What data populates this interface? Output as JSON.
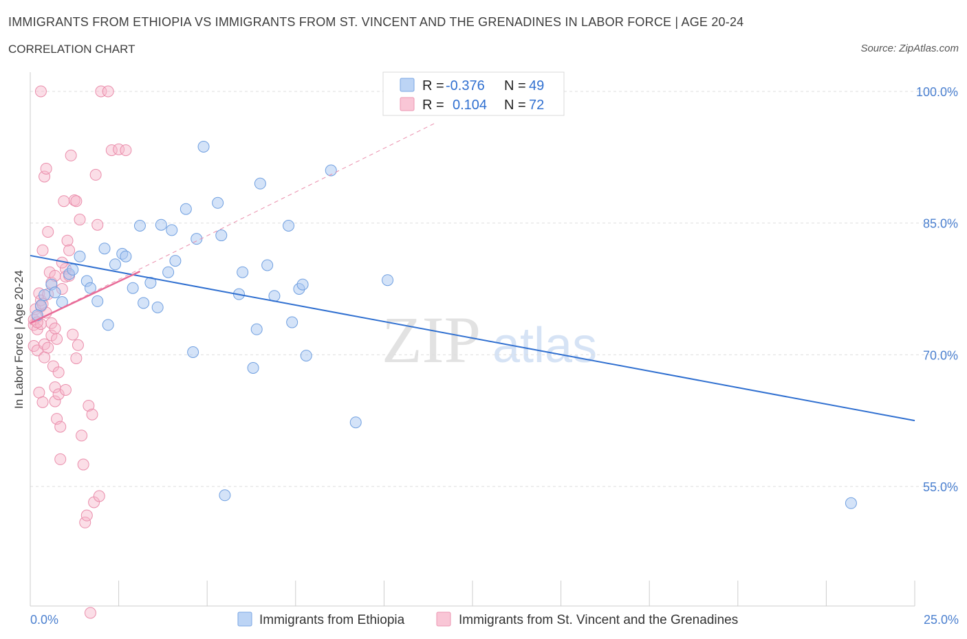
{
  "header": {
    "title": "IMMIGRANTS FROM ETHIOPIA VS IMMIGRANTS FROM ST. VINCENT AND THE GRENADINES IN LABOR FORCE | AGE 20-24",
    "subtitle": "CORRELATION CHART",
    "source": "Source: ZipAtlas.com"
  },
  "colors": {
    "blue_fill": "#a9c8f2",
    "blue_stroke": "#6f9fe0",
    "blue_line": "#2f6fd0",
    "pink_fill": "#f6b6ca",
    "pink_stroke": "#ea8dab",
    "pink_line": "#e86b98",
    "grid": "#dddddd",
    "axis_text": "#4a7fcf"
  },
  "legend": {
    "r_label": "R =",
    "n_label": "N =",
    "series": [
      {
        "r": "-0.376",
        "n": "49"
      },
      {
        "r": "0.104",
        "n": "72"
      }
    ]
  },
  "watermark": {
    "zip": "ZIP",
    "atlas": "atlas"
  },
  "chart_data": {
    "type": "scatter",
    "title": "IMMIGRANTS FROM ETHIOPIA VS IMMIGRANTS FROM ST. VINCENT AND THE GRENADINES IN LABOR FORCE | AGE 20-24",
    "xlabel": "",
    "ylabel": "In Labor Force | Age 20-24",
    "xlim": [
      0,
      25
    ],
    "ylim": [
      40,
      100
    ],
    "x_tick_labels": [
      "0.0%",
      "25.0%"
    ],
    "y_ticks": [
      100,
      85,
      70,
      55
    ],
    "y_tick_labels": [
      "100.0%",
      "85.0%",
      "70.0%",
      "55.0%"
    ],
    "series": [
      {
        "name": "Immigrants from Ethiopia",
        "color": "blue",
        "r": -0.376,
        "n": 49,
        "trend": {
          "x0": 0,
          "y0": 81.3,
          "x1": 25,
          "y1": 62.5
        },
        "points": [
          [
            0.3,
            75.6
          ],
          [
            0.4,
            76.8
          ],
          [
            0.6,
            78.0
          ],
          [
            0.7,
            77.1
          ],
          [
            0.9,
            76.0
          ],
          [
            1.1,
            79.2
          ],
          [
            1.2,
            79.7
          ],
          [
            1.4,
            81.2
          ],
          [
            1.6,
            78.4
          ],
          [
            1.7,
            77.6
          ],
          [
            1.9,
            76.1
          ],
          [
            2.1,
            82.1
          ],
          [
            2.2,
            73.4
          ],
          [
            2.4,
            80.3
          ],
          [
            2.6,
            81.5
          ],
          [
            2.7,
            81.2
          ],
          [
            2.9,
            77.6
          ],
          [
            3.1,
            84.7
          ],
          [
            3.2,
            75.9
          ],
          [
            3.4,
            78.2
          ],
          [
            3.6,
            75.4
          ],
          [
            3.7,
            84.8
          ],
          [
            3.9,
            79.4
          ],
          [
            4.0,
            84.2
          ],
          [
            4.1,
            80.7
          ],
          [
            4.4,
            86.6
          ],
          [
            4.6,
            70.3
          ],
          [
            4.7,
            83.2
          ],
          [
            4.9,
            93.7
          ],
          [
            5.3,
            87.3
          ],
          [
            5.4,
            83.6
          ],
          [
            5.5,
            54.0
          ],
          [
            5.9,
            76.9
          ],
          [
            6.0,
            79.4
          ],
          [
            6.3,
            68.5
          ],
          [
            6.4,
            72.9
          ],
          [
            6.5,
            89.5
          ],
          [
            6.7,
            80.2
          ],
          [
            6.9,
            76.7
          ],
          [
            7.3,
            84.7
          ],
          [
            7.4,
            73.7
          ],
          [
            7.6,
            77.5
          ],
          [
            7.7,
            78.0
          ],
          [
            7.8,
            69.9
          ],
          [
            8.5,
            91.0
          ],
          [
            9.2,
            62.3
          ],
          [
            10.1,
            78.5
          ],
          [
            23.2,
            53.1
          ],
          [
            0.2,
            74.5
          ]
        ]
      },
      {
        "name": "Immigrants from St. Vincent and the Grenadines",
        "color": "pink",
        "r": 0.104,
        "n": 72,
        "trend": {
          "x0": 0,
          "y0": 73.6,
          "x1": 3.1,
          "y1": 79.5
        },
        "trend_extended": {
          "x0": 0,
          "y0": 73.6,
          "x1": 11.5,
          "y1": 96.5
        },
        "points": [
          [
            0.1,
            73.4
          ],
          [
            0.1,
            74.0
          ],
          [
            0.1,
            71.0
          ],
          [
            0.15,
            75.2
          ],
          [
            0.2,
            72.9
          ],
          [
            0.2,
            74.3
          ],
          [
            0.2,
            70.5
          ],
          [
            0.25,
            77.0
          ],
          [
            0.25,
            65.7
          ],
          [
            0.3,
            73.5
          ],
          [
            0.3,
            75.5
          ],
          [
            0.3,
            76.2
          ],
          [
            0.35,
            64.6
          ],
          [
            0.35,
            81.9
          ],
          [
            0.4,
            90.3
          ],
          [
            0.4,
            71.2
          ],
          [
            0.45,
            91.2
          ],
          [
            0.45,
            74.8
          ],
          [
            0.5,
            84.0
          ],
          [
            0.5,
            70.8
          ],
          [
            0.55,
            79.4
          ],
          [
            0.6,
            78.2
          ],
          [
            0.6,
            72.2
          ],
          [
            0.65,
            68.7
          ],
          [
            0.7,
            66.3
          ],
          [
            0.7,
            79.0
          ],
          [
            0.7,
            64.7
          ],
          [
            0.75,
            62.7
          ],
          [
            0.75,
            71.8
          ],
          [
            0.8,
            68.0
          ],
          [
            0.85,
            61.8
          ],
          [
            0.85,
            58.1
          ],
          [
            0.9,
            77.5
          ],
          [
            0.95,
            87.5
          ],
          [
            1.0,
            79.8
          ],
          [
            1.0,
            78.9
          ],
          [
            1.05,
            83.0
          ],
          [
            1.1,
            81.9
          ],
          [
            1.15,
            92.7
          ],
          [
            1.2,
            72.3
          ],
          [
            1.25,
            87.6
          ],
          [
            1.3,
            87.5
          ],
          [
            1.3,
            69.6
          ],
          [
            1.35,
            71.1
          ],
          [
            1.4,
            85.4
          ],
          [
            1.45,
            60.8
          ],
          [
            1.5,
            57.5
          ],
          [
            1.55,
            50.9
          ],
          [
            1.6,
            51.7
          ],
          [
            1.65,
            64.2
          ],
          [
            1.7,
            40.6
          ],
          [
            1.75,
            63.2
          ],
          [
            1.8,
            53.2
          ],
          [
            1.85,
            90.5
          ],
          [
            1.9,
            84.8
          ],
          [
            1.95,
            53.9
          ],
          [
            2.0,
            100.0
          ],
          [
            2.2,
            100.0
          ],
          [
            2.3,
            93.3
          ],
          [
            2.5,
            93.4
          ],
          [
            2.7,
            93.3
          ],
          [
            1.1,
            79.0
          ],
          [
            0.9,
            80.5
          ],
          [
            0.6,
            73.6
          ],
          [
            0.4,
            69.7
          ],
          [
            0.8,
            65.5
          ],
          [
            0.2,
            73.7
          ],
          [
            0.5,
            76.9
          ],
          [
            0.35,
            75.8
          ],
          [
            1.0,
            66.0
          ],
          [
            0.7,
            73.0
          ],
          [
            0.3,
            100.0
          ]
        ]
      }
    ]
  },
  "bottom_legend": [
    {
      "label": "Immigrants from Ethiopia"
    },
    {
      "label": "Immigrants from St. Vincent and the Grenadines"
    }
  ]
}
